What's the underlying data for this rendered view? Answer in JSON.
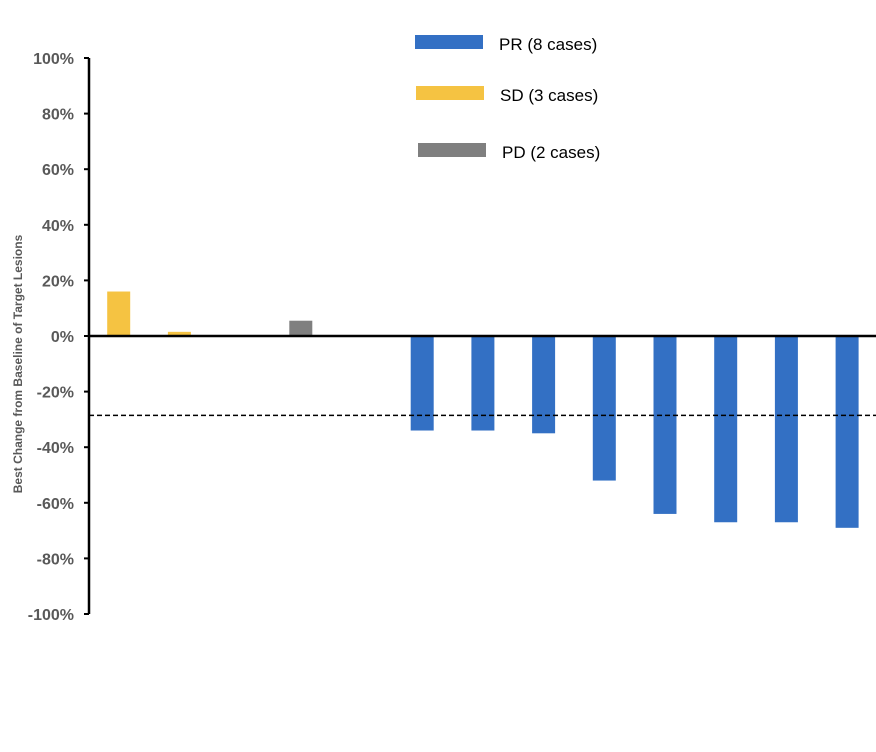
{
  "chart_data": {
    "type": "bar",
    "title": "",
    "xlabel": "",
    "ylabel": "Best Change from Baseline of Target Lesions",
    "ylim": [
      -100,
      100
    ],
    "y_ticks": [
      "100%",
      "80%",
      "60%",
      "40%",
      "20%",
      "0%",
      "-20%",
      "-40%",
      "-60%",
      "-80%",
      "-100%"
    ],
    "reference_line": {
      "y": -30,
      "style": "dashed"
    },
    "grid": false,
    "legend_position": "top-center",
    "series": [
      {
        "name": "PR (8 cases)",
        "color": "#3370C4",
        "x": [
          6,
          7,
          8,
          9,
          10,
          11,
          12,
          13
        ],
        "values": [
          -34,
          -34,
          -35,
          -52,
          -64,
          -67,
          -67,
          -69
        ]
      },
      {
        "name": "SD (3 cases)",
        "color": "#F5C342",
        "x": [
          1,
          2,
          3
        ],
        "values": [
          16,
          1.5,
          0
        ]
      },
      {
        "name": "PD (2 cases)",
        "color": "#7F7F7F",
        "x": [
          4,
          5
        ],
        "values": [
          5.5,
          0
        ]
      }
    ]
  }
}
